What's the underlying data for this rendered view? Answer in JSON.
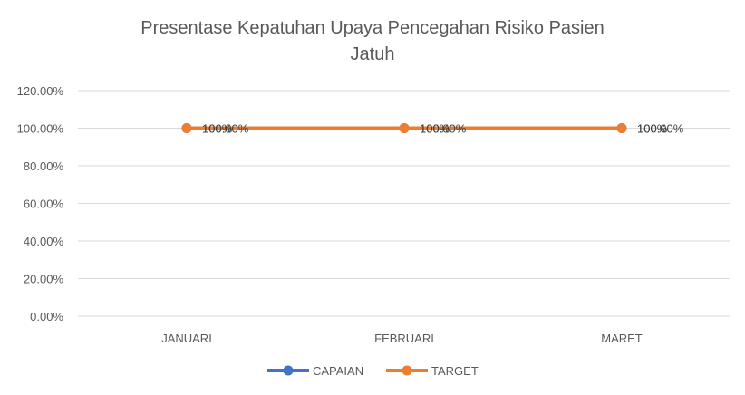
{
  "chart_data": {
    "type": "line",
    "title_lines": [
      "Presentase Kepatuhan Upaya Pencegahan Risiko Pasien",
      "Jatuh"
    ],
    "categories": [
      "JANUARI",
      "FEBRUARI",
      "MARET"
    ],
    "y_ticks": [
      "0.00%",
      "20.00%",
      "40.00%",
      "60.00%",
      "80.00%",
      "100.00%",
      "120.00%"
    ],
    "ylim": [
      0,
      1.2
    ],
    "grid": true,
    "legend_position": "bottom",
    "series": [
      {
        "name": "CAPAIAN",
        "values": [
          1.0,
          1.0,
          1.0
        ],
        "labels": [
          "100%",
          "100%",
          "100%"
        ],
        "color": "#4472C4"
      },
      {
        "name": "TARGET",
        "values": [
          1.0,
          1.0,
          1.0
        ],
        "labels": [
          "100.00%",
          "100.00%",
          "100.00%"
        ],
        "color": "#ED7D31"
      }
    ]
  }
}
